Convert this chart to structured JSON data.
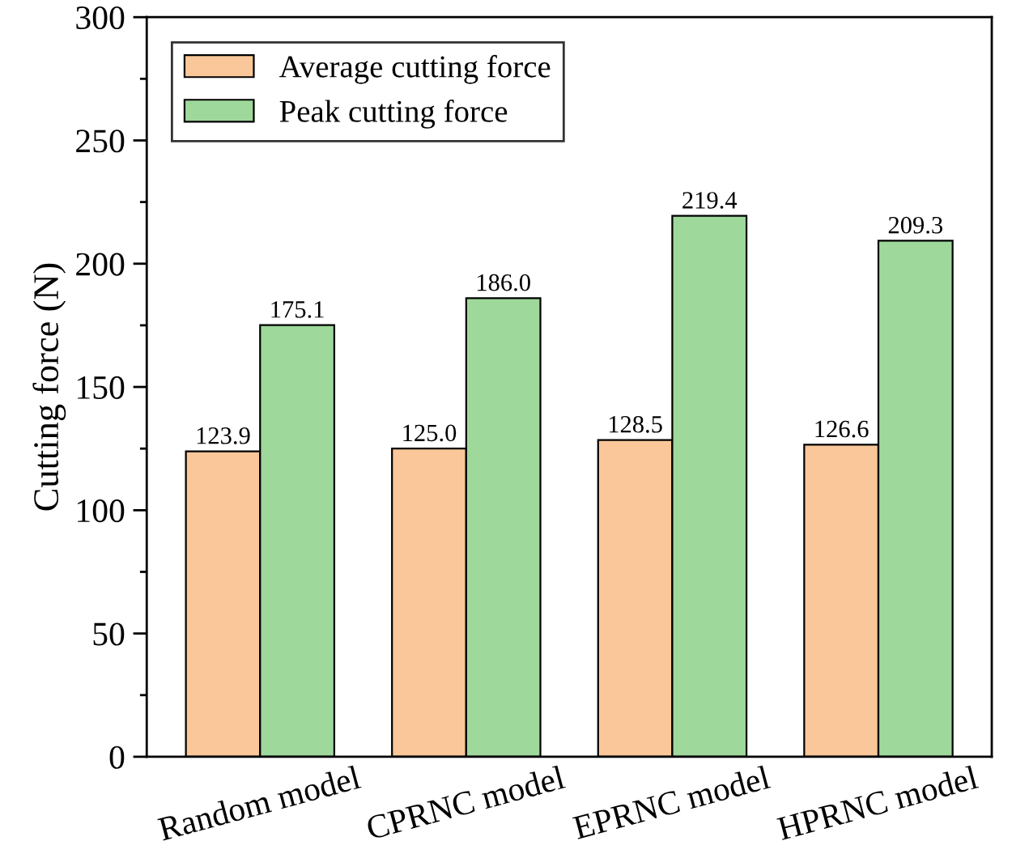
{
  "chart_data": {
    "type": "bar",
    "ylabel": "Cutting force (N)",
    "categories": [
      "Random model",
      "CPRNC model",
      "EPRNC model",
      "HPRNC model"
    ],
    "series": [
      {
        "name": "Average cutting force",
        "color": "#f9c799",
        "values": [
          123.9,
          125.0,
          128.5,
          126.6
        ],
        "value_labels": [
          "123.9",
          "125.0",
          "128.5",
          "126.6"
        ]
      },
      {
        "name": "Peak cutting force",
        "color": "#9ed89b",
        "values": [
          175.1,
          186.0,
          219.4,
          209.3
        ],
        "value_labels": [
          "175.1",
          "186.0",
          "219.4",
          "209.3"
        ]
      }
    ],
    "ylim": [
      0,
      300
    ],
    "yticks": [
      0,
      50,
      100,
      150,
      200,
      250,
      300
    ],
    "legend": "top left",
    "grid": false
  }
}
